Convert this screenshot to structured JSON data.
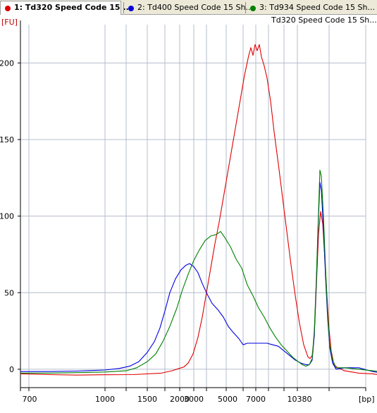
{
  "tabs": [
    {
      "label": "1: Td320 Speed Code 15 ...",
      "color": "#e00000",
      "active": true
    },
    {
      "label": "2: Td400 Speed Code 15 Sh...",
      "color": "#0000e0",
      "active": false
    },
    {
      "label": "3: Td934 Speed Code 15 Sh...",
      "color": "#008000",
      "active": false
    }
  ],
  "subtitle": "Td320 Speed Code 15 Sh...",
  "chart_data": {
    "type": "line",
    "ylabel": "[FU]",
    "xlabel": "[bp]",
    "ylim": [
      -12,
      225
    ],
    "y_ticks": [
      0,
      50,
      100,
      150,
      200
    ],
    "x_tick_labels": [
      "700",
      "1000",
      "1500",
      "2000",
      "3000",
      "5000",
      "7000",
      "10380"
    ],
    "grid": true,
    "series": [
      {
        "color": "#e00000",
        "points": [
          [
            0,
            -3
          ],
          [
            40,
            -3.5
          ],
          [
            80,
            -3.8
          ],
          [
            120,
            -3.6
          ],
          [
            160,
            -3.5
          ],
          [
            200,
            -2.5
          ],
          [
            215,
            -1
          ],
          [
            225,
            0.5
          ],
          [
            232,
            1.5
          ],
          [
            238,
            4
          ],
          [
            245,
            10
          ],
          [
            252,
            21
          ],
          [
            258,
            34
          ],
          [
            264,
            50
          ],
          [
            270,
            66
          ],
          [
            276,
            82
          ],
          [
            282,
            96
          ],
          [
            288,
            112
          ],
          [
            294,
            128
          ],
          [
            300,
            144
          ],
          [
            306,
            160
          ],
          [
            312,
            176
          ],
          [
            318,
            192
          ],
          [
            324,
            205
          ],
          [
            327,
            210
          ],
          [
            330,
            205
          ],
          [
            333,
            212
          ],
          [
            336,
            208
          ],
          [
            339,
            212
          ],
          [
            342,
            204
          ],
          [
            346,
            198
          ],
          [
            350,
            190
          ],
          [
            355,
            175
          ],
          [
            360,
            155
          ],
          [
            366,
            134
          ],
          [
            372,
            112
          ],
          [
            378,
            90
          ],
          [
            384,
            68
          ],
          [
            390,
            48
          ],
          [
            396,
            30
          ],
          [
            402,
            16
          ],
          [
            408,
            8
          ],
          [
            411,
            7
          ],
          [
            414,
            9
          ],
          [
            417,
            22
          ],
          [
            420,
            55
          ],
          [
            423,
            88
          ],
          [
            426,
            103
          ],
          [
            429,
            95
          ],
          [
            432,
            72
          ],
          [
            435,
            48
          ],
          [
            438,
            26
          ],
          [
            441,
            12
          ],
          [
            445,
            3
          ],
          [
            450,
            1
          ],
          [
            460,
            -1
          ],
          [
            480,
            -2.5
          ],
          [
            500,
            -3
          ],
          [
            520,
            -4.5
          ]
        ]
      },
      {
        "color": "#0000e0",
        "points": [
          [
            0,
            -1.5
          ],
          [
            40,
            -1.5
          ],
          [
            80,
            -1.2
          ],
          [
            120,
            -0.5
          ],
          [
            140,
            0.5
          ],
          [
            155,
            2
          ],
          [
            168,
            5
          ],
          [
            180,
            11
          ],
          [
            190,
            18
          ],
          [
            198,
            27
          ],
          [
            205,
            38
          ],
          [
            212,
            50
          ],
          [
            220,
            59
          ],
          [
            228,
            65
          ],
          [
            235,
            68
          ],
          [
            240,
            69
          ],
          [
            246,
            67
          ],
          [
            252,
            63
          ],
          [
            258,
            56
          ],
          [
            265,
            49
          ],
          [
            272,
            43
          ],
          [
            280,
            39
          ],
          [
            288,
            34
          ],
          [
            295,
            28
          ],
          [
            302,
            24
          ],
          [
            310,
            20
          ],
          [
            316,
            16
          ],
          [
            322,
            17
          ],
          [
            330,
            17
          ],
          [
            340,
            17
          ],
          [
            350,
            17
          ],
          [
            358,
            16
          ],
          [
            366,
            15
          ],
          [
            374,
            12
          ],
          [
            382,
            9
          ],
          [
            390,
            6
          ],
          [
            398,
            4
          ],
          [
            405,
            3
          ],
          [
            410,
            3
          ],
          [
            414,
            6
          ],
          [
            417,
            22
          ],
          [
            420,
            58
          ],
          [
            423,
            100
          ],
          [
            425,
            122
          ],
          [
            427,
            117
          ],
          [
            430,
            92
          ],
          [
            433,
            60
          ],
          [
            436,
            33
          ],
          [
            439,
            14
          ],
          [
            443,
            4
          ],
          [
            448,
            0
          ],
          [
            460,
            1
          ],
          [
            480,
            1
          ],
          [
            500,
            -1.5
          ],
          [
            520,
            -3
          ]
        ]
      },
      {
        "color": "#008000",
        "points": [
          [
            0,
            -2.5
          ],
          [
            40,
            -2.5
          ],
          [
            80,
            -2.2
          ],
          [
            120,
            -1.8
          ],
          [
            150,
            -1
          ],
          [
            165,
            1
          ],
          [
            180,
            5
          ],
          [
            192,
            10
          ],
          [
            202,
            18
          ],
          [
            212,
            28
          ],
          [
            222,
            40
          ],
          [
            230,
            52
          ],
          [
            238,
            62
          ],
          [
            246,
            71
          ],
          [
            254,
            78
          ],
          [
            262,
            84
          ],
          [
            270,
            87
          ],
          [
            278,
            88
          ],
          [
            284,
            90
          ],
          [
            290,
            86
          ],
          [
            298,
            80
          ],
          [
            306,
            72
          ],
          [
            314,
            66
          ],
          [
            322,
            55
          ],
          [
            330,
            48
          ],
          [
            338,
            40
          ],
          [
            346,
            34
          ],
          [
            354,
            27
          ],
          [
            362,
            21
          ],
          [
            370,
            16
          ],
          [
            378,
            12
          ],
          [
            386,
            8
          ],
          [
            394,
            5
          ],
          [
            400,
            3
          ],
          [
            405,
            2
          ],
          [
            410,
            3
          ],
          [
            414,
            7
          ],
          [
            417,
            25
          ],
          [
            420,
            60
          ],
          [
            423,
            103
          ],
          [
            425,
            130
          ],
          [
            427,
            126
          ],
          [
            430,
            100
          ],
          [
            433,
            66
          ],
          [
            436,
            36
          ],
          [
            439,
            16
          ],
          [
            443,
            6
          ],
          [
            448,
            1
          ],
          [
            460,
            1
          ],
          [
            480,
            0
          ],
          [
            500,
            -1
          ],
          [
            520,
            -2
          ]
        ]
      }
    ]
  }
}
